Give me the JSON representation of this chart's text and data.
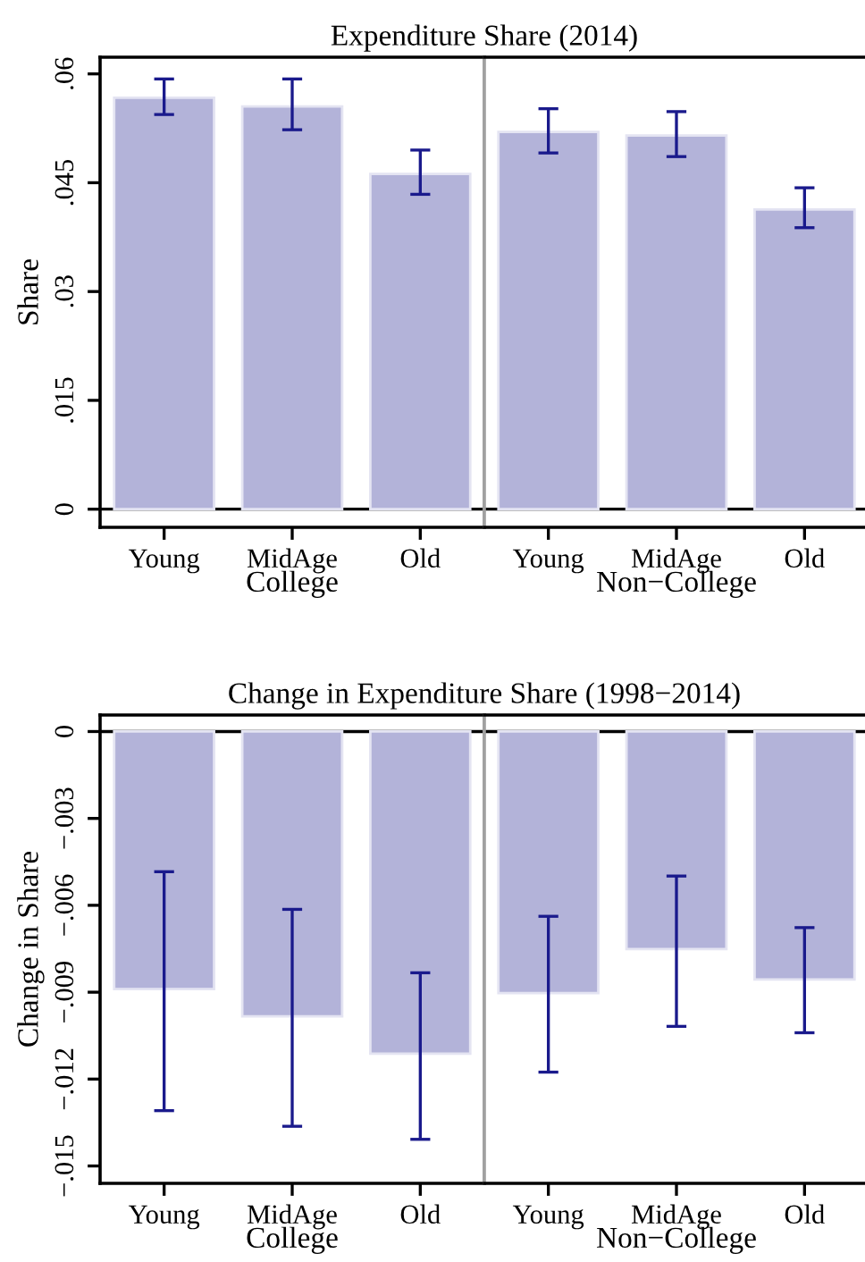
{
  "chart_data": [
    {
      "type": "bar",
      "title": "Expenditure Share (2014)",
      "ylabel": "Share",
      "xlabel": "College",
      "categories": [
        "Young",
        "MidAge",
        "Old"
      ],
      "values": [
        0.0567,
        0.0555,
        0.0462
      ],
      "errors": [
        [
          0.0544,
          0.0593
        ],
        [
          0.0523,
          0.0593
        ],
        [
          0.0434,
          0.0495
        ]
      ],
      "color": "#b3b3d9",
      "ylim": [
        -0.0025,
        0.0623
      ],
      "yticks": [
        {
          "value": 0,
          "label": "0"
        },
        {
          "value": 0.015,
          "label": ".015"
        },
        {
          "value": 0.03,
          "label": ".03"
        },
        {
          "value": 0.045,
          "label": ".045"
        },
        {
          "value": 0.06,
          "label": ".06"
        }
      ],
      "ref_lines": [
        {
          "axis": "y",
          "value": 0,
          "color": "#000000"
        }
      ]
    },
    {
      "type": "bar",
      "xlabel": "Non−College",
      "categories": [
        "Young",
        "MidAge",
        "Old"
      ],
      "values": [
        0.052,
        0.0515,
        0.0413
      ],
      "errors": [
        [
          0.0491,
          0.0552
        ],
        [
          0.0486,
          0.0548
        ],
        [
          0.0388,
          0.0443
        ]
      ],
      "color": "#b3b3d9",
      "ylim": [
        -0.0025,
        0.0623
      ],
      "tick_labels": "x",
      "ref_lines": [
        {
          "axis": "y",
          "value": 0,
          "color": "#000000"
        }
      ]
    },
    {
      "type": "bar",
      "title": "Change in Expenditure Share (1998−2014)",
      "ylabel": "Change in Share",
      "xlabel": "College",
      "categories": [
        "Young",
        "MidAge",
        "Old"
      ],
      "values": [
        -0.00889,
        -0.00983,
        -0.01112
      ],
      "errors": [
        [
          -0.01309,
          -0.00484
        ],
        [
          -0.01363,
          -0.00614
        ],
        [
          -0.01408,
          -0.00833
        ]
      ],
      "color": "#b3b3d9",
      "ylim": [
        -0.0156,
        0.00057
      ],
      "yticks": [
        {
          "value": -0.015,
          "label": "−.015"
        },
        {
          "value": -0.012,
          "label": "−.012"
        },
        {
          "value": -0.009,
          "label": "−.009"
        },
        {
          "value": -0.006,
          "label": "−.006"
        },
        {
          "value": -0.003,
          "label": "−.003"
        },
        {
          "value": 0,
          "label": "0"
        }
      ],
      "ref_lines": [
        {
          "axis": "y",
          "value": 0,
          "color": "#000000"
        }
      ]
    },
    {
      "type": "bar",
      "xlabel": "Non−College",
      "categories": [
        "Young",
        "MidAge",
        "Old"
      ],
      "values": [
        -0.00903,
        -0.00751,
        -0.00856
      ],
      "errors": [
        [
          -0.01176,
          -0.00638
        ],
        [
          -0.01018,
          -0.00499
        ],
        [
          -0.0104,
          -0.00677
        ]
      ],
      "color": "#b3b3d9",
      "ylim": [
        -0.0156,
        0.00057
      ],
      "tick_labels": "x",
      "ref_lines": [
        {
          "axis": "y",
          "value": 0,
          "color": "#000000"
        }
      ]
    }
  ]
}
